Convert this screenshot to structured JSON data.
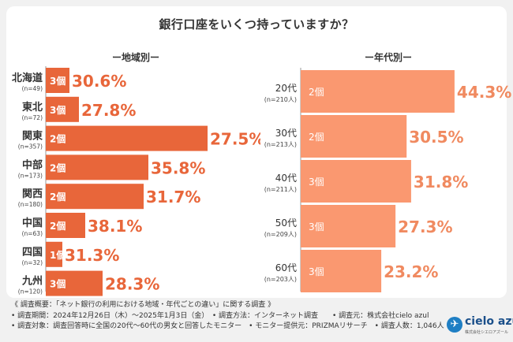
{
  "title": "銀行口座をいくつ持っていますか？",
  "colors": {
    "left_bar": "#e8663a",
    "right_bar": "#fa9870",
    "left_text": "#e8663a",
    "right_text": "#f08a60"
  },
  "chart_data": [
    {
      "type": "bar",
      "orientation": "horizontal",
      "title": "ー地域別ー",
      "categories": [
        "北海道",
        "東北",
        "関東",
        "中部",
        "関西",
        "中国",
        "四国",
        "九州"
      ],
      "sample_sizes": [
        "(n=49)",
        "(n=72)",
        "(n=357)",
        "(n=173)",
        "(n=180)",
        "(n=63)",
        "(n=32)",
        "(n=120)"
      ],
      "bar_labels": [
        "3個",
        "3個",
        "2個",
        "2個",
        "2個",
        "2個",
        "1個",
        "3個"
      ],
      "values": [
        30.6,
        27.8,
        27.5,
        35.8,
        31.7,
        38.1,
        31.3,
        28.3
      ],
      "value_labels": [
        "30.6%",
        "27.8%",
        "27.5%",
        "35.8%",
        "31.7%",
        "38.1%",
        "31.3%",
        "28.3%"
      ],
      "bar_level": [
        3,
        3,
        2,
        2,
        2,
        2,
        1,
        3
      ],
      "note": "bar length follows the 個 label shown in each bar"
    },
    {
      "type": "bar",
      "orientation": "horizontal",
      "title": "ー年代別ー",
      "categories": [
        "20代",
        "30代",
        "40代",
        "50代",
        "60代"
      ],
      "sample_sizes": [
        "(n=210人)",
        "(n=213人)",
        "(n=211人)",
        "(n=209人)",
        "(n=203人)"
      ],
      "bar_labels": [
        "2個",
        "2個",
        "3個",
        "3個",
        "3個"
      ],
      "values": [
        44.3,
        30.5,
        31.8,
        27.3,
        23.2
      ],
      "value_labels": [
        "44.3%",
        "30.5%",
        "31.8%",
        "27.3%",
        "23.2%"
      ]
    }
  ],
  "footer": {
    "line1": "《 調査概要：「ネット銀行の利用における地域・年代ごとの違い」に関する調査 》",
    "line2": "• 調査期間：2024年12月26日（木）〜2025年1月3日（金）　• 調査方法：インターネット調査　　• 調査元：株式会社cielo azul",
    "line3": "• 調査対象：調査回答時に全国の20代〜60代の男女と回答したモニター　• モニター提供元：PRIZMAリサーチ　• 調査人数：1,046人"
  },
  "logo": {
    "name": "cielo azul",
    "sub": "株式会社シエロアズール"
  }
}
